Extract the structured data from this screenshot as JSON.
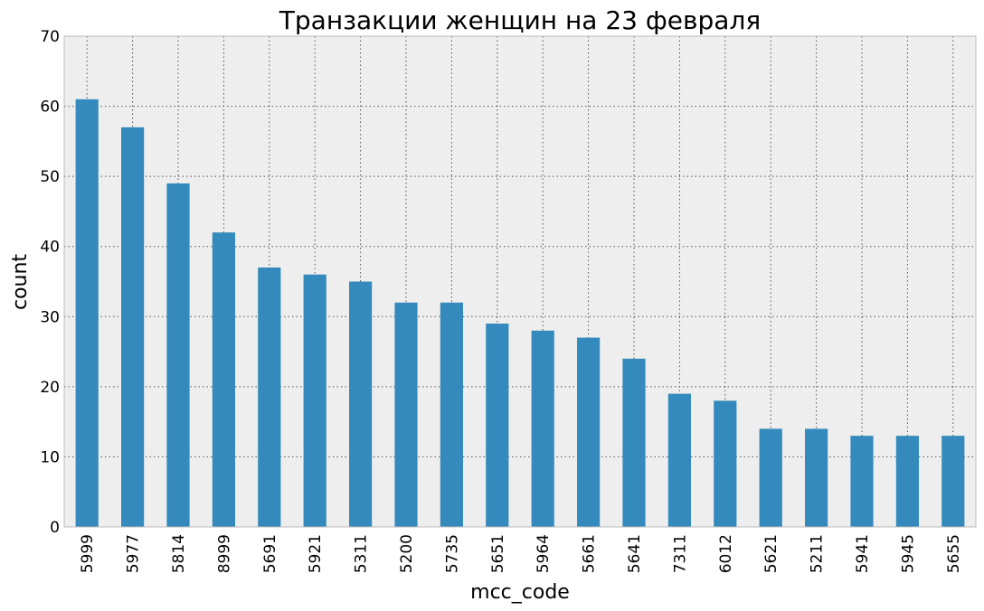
{
  "chart_data": {
    "type": "bar",
    "title": "Транзакции женщин на 23 февраля",
    "xlabel": "mcc_code",
    "ylabel": "count",
    "categories": [
      "5999",
      "5977",
      "5814",
      "8999",
      "5691",
      "5921",
      "5311",
      "5200",
      "5735",
      "5651",
      "5964",
      "5661",
      "5641",
      "7311",
      "6012",
      "5621",
      "5211",
      "5941",
      "5945",
      "5655"
    ],
    "values": [
      61,
      57,
      49,
      42,
      37,
      36,
      35,
      32,
      32,
      29,
      28,
      27,
      24,
      19,
      18,
      14,
      14,
      13,
      13,
      13
    ],
    "ylim": [
      0,
      70
    ],
    "yticks": [
      0,
      10,
      20,
      30,
      40,
      50,
      60,
      70
    ],
    "grid": true,
    "grid_style": "dotted",
    "x_tick_rotation": "vertical",
    "colors": {
      "bar": "#348ABD",
      "plot_background": "#EEEEEE",
      "grid": "#555555",
      "frame": "#BCBCBC"
    }
  }
}
